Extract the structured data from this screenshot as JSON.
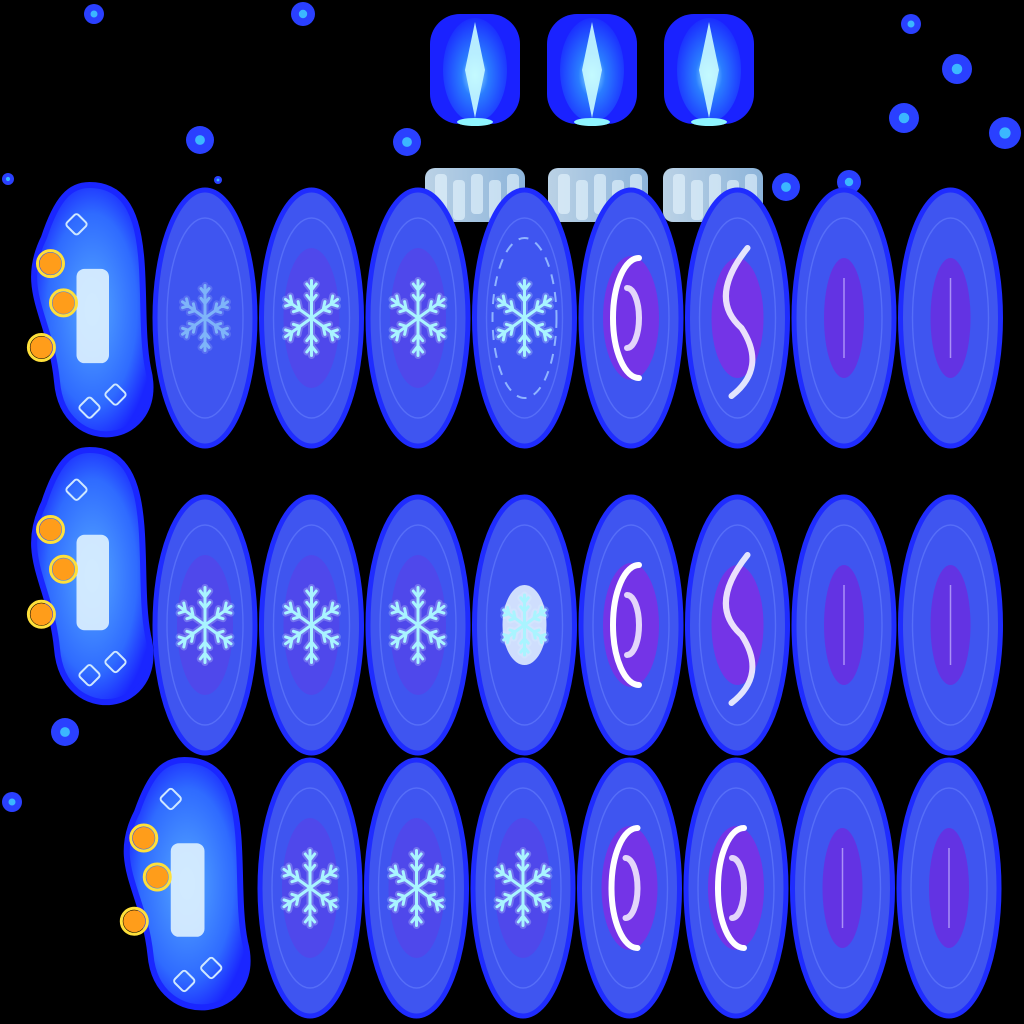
{
  "sheet": {
    "background": "#000000",
    "palette": {
      "disc": "#3f55f0",
      "disc_rim": "#1f2cff",
      "snowflake": "#a9f4ff",
      "vortex": "#7a31e6",
      "fire_orb": "#ff9d1a"
    },
    "crystal_frames": 3,
    "frost_text_frames": 3,
    "rows": [
      {
        "emitter": true,
        "frames": [
          "flake-dim",
          "flake",
          "flake",
          "flake-ring",
          "vortex",
          "vortex-swirl",
          "fade",
          "fade"
        ]
      },
      {
        "emitter": true,
        "frames": [
          "flake",
          "flake",
          "flake",
          "burst",
          "vortex",
          "vortex-swirl",
          "fade",
          "fade"
        ]
      },
      {
        "emitter": true,
        "frames": [
          "flake",
          "flake",
          "flake",
          "vortex",
          "vortex",
          "fade",
          "fade"
        ]
      }
    ]
  }
}
